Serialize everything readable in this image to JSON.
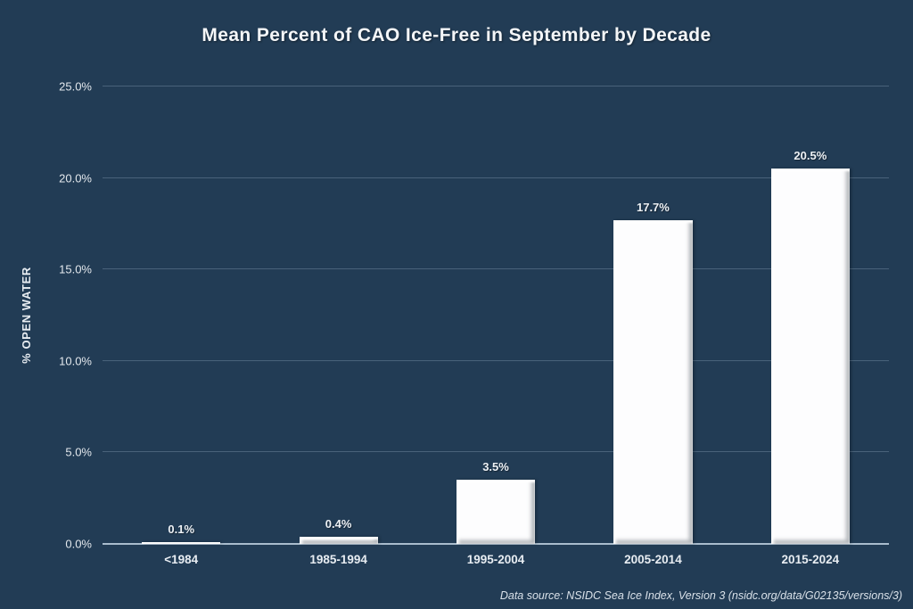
{
  "chart_data": {
    "type": "bar",
    "title": "Mean Percent of CAO Ice-Free in September by Decade",
    "xlabel": "",
    "ylabel": "% OPEN WATER",
    "categories": [
      "<1984",
      "1985-1994",
      "1995-2004",
      "2005-2014",
      "2015-2024"
    ],
    "values": [
      0.1,
      0.4,
      3.5,
      17.7,
      20.5
    ],
    "value_labels": [
      "0.1%",
      "0.4%",
      "3.5%",
      "17.7%",
      "20.5%"
    ],
    "y_ticks": [
      {
        "value": 0,
        "label": "0.0%"
      },
      {
        "value": 5,
        "label": "5.0%"
      },
      {
        "value": 10,
        "label": "10.0%"
      },
      {
        "value": 15,
        "label": "15.0%"
      },
      {
        "value": 20,
        "label": "20.0%"
      },
      {
        "value": 25,
        "label": "25.0%"
      }
    ],
    "ylim": [
      0,
      25
    ],
    "grid": "horizontal",
    "legend": "none",
    "source_note": "Data source: NSIDC Sea Ice Index, Version 3 (nsidc.org/data/G02135/versions/3)",
    "colors": {
      "background": "#223C55",
      "bar": "#FFFFFF",
      "text": "#EDF1F5",
      "gridline": "rgba(176,198,219,0.28)",
      "axis_line": "#A9BCCD"
    }
  }
}
